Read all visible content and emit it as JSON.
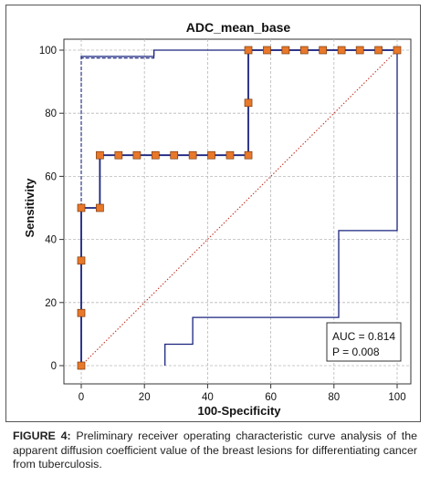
{
  "chart_data": {
    "type": "line",
    "title": "ADC_mean_base",
    "xlabel": "100-Specificity",
    "ylabel": "Sensitivity",
    "xlim": [
      0,
      100
    ],
    "ylim": [
      0,
      100
    ],
    "x_ticks": [
      0,
      20,
      40,
      60,
      80,
      100
    ],
    "y_ticks": [
      0,
      20,
      40,
      60,
      80,
      100
    ],
    "grid": true,
    "series": [
      {
        "role": "roc-curve",
        "style": "solid",
        "color": "#1a237e",
        "x": [
          0,
          0,
          0,
          0,
          5.9,
          5.9,
          52.9,
          52.9,
          100
        ],
        "y": [
          0,
          16.7,
          33.3,
          50,
          50,
          66.7,
          66.7,
          100,
          100
        ]
      },
      {
        "role": "upper-confidence-bound",
        "style": "dashed",
        "color": "#1a237e",
        "x": [
          0,
          0,
          23,
          23,
          100
        ],
        "y": [
          0,
          97.5,
          97.5,
          100,
          100
        ]
      },
      {
        "role": "upper-confidence-bound-solid",
        "style": "solid",
        "color": "#1a237e",
        "x": [
          0,
          0,
          23,
          23,
          100
        ],
        "y": [
          97.5,
          98,
          98,
          100,
          100
        ]
      },
      {
        "role": "lower-confidence-bound",
        "style": "solid",
        "color": "#1a237e",
        "x": [
          26.5,
          26.5,
          35.3,
          35.3,
          81.5,
          81.5,
          100,
          100
        ],
        "y": [
          0,
          6.8,
          6.8,
          15.3,
          15.3,
          42.8,
          42.8,
          100
        ]
      },
      {
        "role": "reference-diagonal",
        "style": "dotted",
        "color": "#c0392b",
        "x": [
          0,
          100
        ],
        "y": [
          0,
          100
        ]
      }
    ],
    "markers": {
      "color": "#e8782a",
      "x": [
        0,
        0,
        0,
        0,
        5.9,
        5.9,
        11.8,
        17.6,
        23.5,
        29.4,
        35.3,
        41.2,
        47.1,
        52.9,
        52.9,
        52.9,
        58.8,
        64.7,
        70.6,
        76.5,
        82.4,
        88.2,
        94.1,
        100
      ],
      "y": [
        0,
        16.7,
        33.3,
        50,
        50,
        66.7,
        66.7,
        66.7,
        66.7,
        66.7,
        66.7,
        66.7,
        66.7,
        66.7,
        83.3,
        100,
        100,
        100,
        100,
        100,
        100,
        100,
        100,
        100
      ]
    },
    "annotation": {
      "auc": "AUC = 0.814",
      "p": "P = 0.008"
    }
  },
  "caption": {
    "label": "FIGURE 4:",
    "text": "Preliminary receiver operating characteristic curve analysis of the apparent diffusion coefficient value of the breast lesions for differentiating cancer from tuberculosis."
  }
}
